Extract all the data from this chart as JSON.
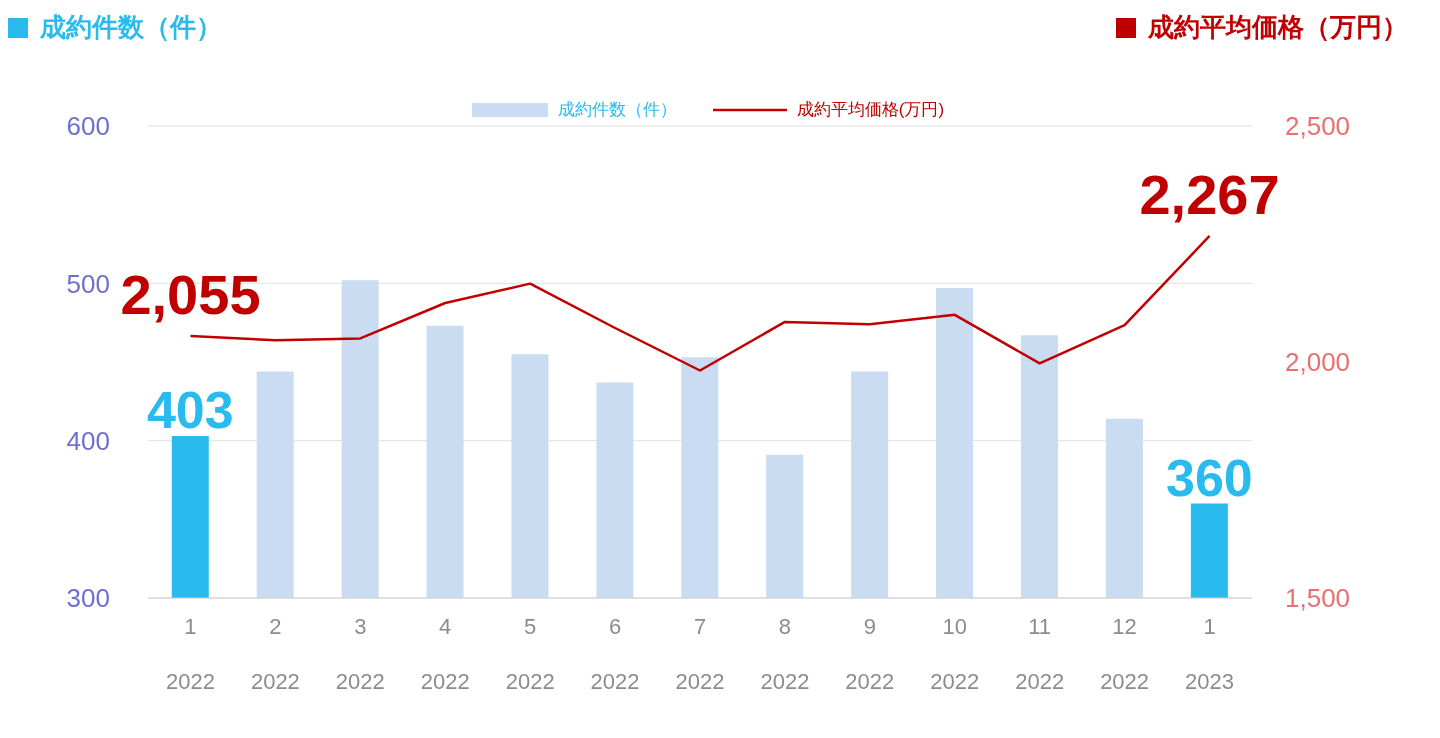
{
  "chart_data": {
    "type": "bar",
    "ylabel": "成約件数（件）",
    "y2label": "成約平均価格（万円）",
    "categories": [
      "1\n2022",
      "2\n2022",
      "3\n2022",
      "4\n2022",
      "5\n2022",
      "6\n2022",
      "7\n2022",
      "8\n2022",
      "9\n2022",
      "10\n2022",
      "11\n2022",
      "12\n2022",
      "1\n2023"
    ],
    "series": [
      {
        "name": "成約件数（件）",
        "color": "#c9dcf2",
        "colors": [
          "#29bbee",
          "#c9dcf2",
          "#c9dcf2",
          "#c9dcf2",
          "#c9dcf2",
          "#c9dcf2",
          "#c9dcf2",
          "#c9dcf2",
          "#c9dcf2",
          "#c9dcf2",
          "#c9dcf2",
          "#c9dcf2",
          "#29bbee"
        ],
        "values": [
          403,
          444,
          502,
          473,
          455,
          437,
          453,
          391,
          444,
          497,
          467,
          414,
          360
        ],
        "value_labels": [
          "403",
          null,
          null,
          null,
          null,
          null,
          null,
          null,
          null,
          null,
          null,
          null,
          "360"
        ]
      },
      {
        "name": "成約平均価格(万円)",
        "type": "line",
        "axis": "y2",
        "color": "#c00000",
        "values": [
          2055,
          2046,
          2050,
          2125,
          2166,
          2072,
          1982,
          2085,
          2080,
          2100,
          1997,
          2078,
          2267
        ],
        "value_labels": [
          "2,055",
          null,
          null,
          null,
          null,
          null,
          null,
          null,
          null,
          null,
          null,
          null,
          "2,267"
        ]
      }
    ],
    "ylim": [
      300,
      600
    ],
    "yticks": [
      300,
      400,
      500,
      600
    ],
    "y2lim": [
      1500,
      2500
    ],
    "y2ticks": [
      {
        "value": 1500,
        "label": "1,500"
      },
      {
        "value": 2000,
        "label": "2,000"
      },
      {
        "value": 2500,
        "label": "2,500"
      }
    ],
    "grid": "y",
    "legend": "top",
    "marker": "none"
  }
}
